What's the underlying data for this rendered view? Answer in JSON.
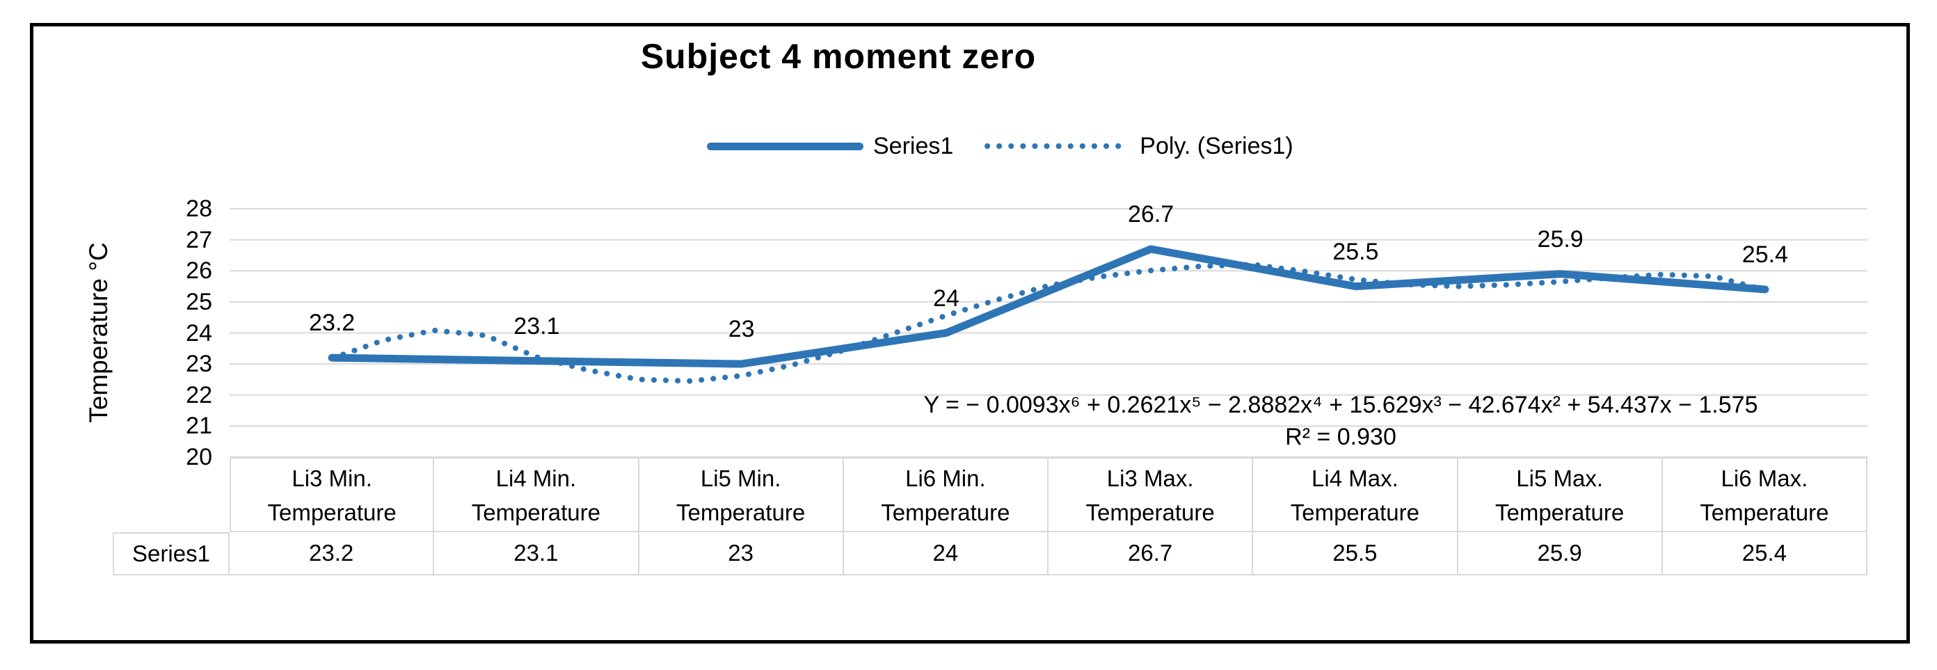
{
  "chart_data": {
    "type": "line",
    "title": "Subject 4 moment zero",
    "ylabel": "Temperature °C",
    "xlabel": "",
    "categories": [
      "Li3 Min. Temperature",
      "Li4 Min. Temperature",
      "Li5 Min. Temperature",
      "Li6 Min. Temperature",
      "Li3 Max. Temperature",
      "Li4 Max. Temperature",
      "Li5 Max. Temperature",
      "Li6 Max. Temperature"
    ],
    "series": [
      {
        "name": "Series1",
        "values": [
          23.2,
          23.1,
          23,
          24,
          26.7,
          25.5,
          25.9,
          25.4
        ]
      }
    ],
    "data_labels": [
      "23.2",
      "23.1",
      "23",
      "24",
      "26.7",
      "25.5",
      "25.9",
      "25.4"
    ],
    "trendline": {
      "name": "Poly. (Series1)",
      "kind": "polynomial",
      "order": 6,
      "equation": "Y = − 0.0093x⁶ + 0.2621x⁵ − 2.8882x⁴ + 15.629x³ − 42.674x² + 54.437x − 1.575",
      "r_squared": 0.93,
      "r_squared_label": "R² = 0.930",
      "samples_x": [
        1,
        1.25,
        1.5,
        1.75,
        2,
        2.25,
        2.5,
        2.75,
        3,
        3.25,
        3.5,
        3.75,
        4,
        4.25,
        4.5,
        4.75,
        5,
        5.25,
        5.5,
        5.75,
        6,
        6.25,
        6.5,
        6.75,
        7,
        7.25,
        7.5,
        7.75,
        8
      ],
      "samples_y": [
        23.18,
        23.76,
        24.08,
        23.92,
        23.22,
        22.8,
        22.5,
        22.45,
        22.62,
        22.97,
        23.44,
        24.0,
        24.56,
        25.07,
        25.52,
        25.81,
        26.01,
        26.15,
        26.2,
        25.98,
        25.72,
        25.56,
        25.5,
        25.55,
        25.65,
        25.78,
        25.88,
        25.82,
        25.38
      ]
    },
    "legend": [
      "Series1",
      "Poly. (Series1)"
    ],
    "legend_position": "top",
    "ylim": [
      20,
      28
    ],
    "yticks": [
      20,
      21,
      22,
      23,
      24,
      25,
      26,
      27,
      28
    ],
    "grid": true,
    "data_table_shown": true,
    "colors": {
      "series": "#2E75B6",
      "gridline": "#D9D9D9",
      "table_border": "#D9D9D9",
      "text": "#000000",
      "frame_border": "#000000"
    }
  }
}
